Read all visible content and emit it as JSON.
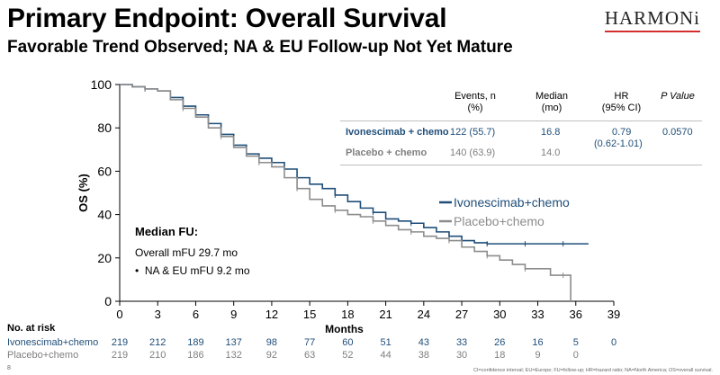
{
  "header": {
    "title": "Primary Endpoint: Overall Survival",
    "subtitle": "Favorable Trend Observed; NA & EU Follow-up Not Yet Mature",
    "logo_text": "HARMONi"
  },
  "summary_table": {
    "headers": [
      "Events, n\n(%)",
      "Median\n(mo)",
      "HR\n(95% CI)",
      "P Value"
    ],
    "rows": [
      {
        "label": "Ivonescimab + chemo",
        "events": "122 (55.7)",
        "median": "16.8",
        "hr": "0.79",
        "ci": "(0.62-1.01)",
        "p": "0.0570"
      },
      {
        "label": "Placebo + chemo",
        "events": "140 (63.9)",
        "median": "14.0",
        "hr": "",
        "ci": "",
        "p": ""
      }
    ]
  },
  "mfu": {
    "title": "Median FU:",
    "overall": "Overall mFU 29.7 mo",
    "na_eu": "NA & EU mFU 9.2 mo"
  },
  "risk_table": {
    "title": "No. at risk",
    "rows": [
      {
        "label": "Ivonescimab+chemo",
        "values": [
          "219",
          "212",
          "189",
          "137",
          "98",
          "77",
          "60",
          "51",
          "43",
          "33",
          "26",
          "16",
          "5",
          "0"
        ]
      },
      {
        "label": "Placebo+chemo",
        "values": [
          "219",
          "210",
          "186",
          "132",
          "92",
          "63",
          "52",
          "44",
          "38",
          "30",
          "18",
          "9",
          "0"
        ]
      }
    ]
  },
  "footnote": "CI=confidence interval; EU=Europe; FU=follow-up; HR=hazard ratio; NA=North America; OS=overall survival.",
  "page_number": "8",
  "colors": {
    "ivonescimab": "#1f4e79",
    "placebo": "#8c8c8c"
  },
  "chart_data": {
    "type": "line",
    "title": "",
    "xlabel": "Months",
    "ylabel": "OS (%)",
    "xlim": [
      0,
      39
    ],
    "ylim": [
      0,
      100
    ],
    "xticks": [
      0,
      3,
      6,
      9,
      12,
      15,
      18,
      21,
      24,
      27,
      30,
      33,
      36,
      39
    ],
    "yticks": [
      0,
      20,
      40,
      60,
      80,
      100
    ],
    "grid": false,
    "legend_position": "right-middle",
    "series": [
      {
        "name": "Ivonescimab+chemo",
        "color": "#1f4e79",
        "x": [
          0,
          1,
          2,
          3,
          4,
          5,
          6,
          7,
          8,
          9,
          10,
          11,
          12,
          13,
          14,
          15,
          16,
          17,
          18,
          19,
          20,
          21,
          22,
          23,
          24,
          25,
          26,
          27,
          28,
          29,
          30,
          31,
          32,
          33,
          34,
          35,
          36,
          37
        ],
        "y": [
          100,
          99,
          98,
          97,
          94,
          90,
          86,
          82,
          77,
          72,
          68,
          66,
          64,
          61,
          57,
          54,
          52,
          49,
          46,
          43,
          41,
          38,
          37,
          36,
          34,
          32,
          30,
          28,
          27,
          26.5,
          26.5,
          26.5,
          26.5,
          26.5,
          26.5,
          26.5,
          26.5,
          26.5
        ]
      },
      {
        "name": "Placebo+chemo",
        "color": "#8c8c8c",
        "x": [
          0,
          1,
          2,
          3,
          4,
          5,
          6,
          7,
          8,
          9,
          10,
          11,
          12,
          13,
          14,
          15,
          16,
          17,
          18,
          19,
          20,
          21,
          22,
          23,
          24,
          25,
          26,
          27,
          28,
          29,
          30,
          31,
          32,
          33,
          34,
          35,
          35.6
        ],
        "y": [
          100,
          99,
          98,
          97,
          93,
          89,
          85,
          80,
          76,
          71,
          67,
          64,
          62,
          57,
          52,
          47,
          44,
          42,
          40,
          39,
          37,
          35,
          33,
          32,
          30,
          29,
          28,
          25,
          23,
          21,
          19,
          17,
          15,
          15,
          12,
          12,
          0
        ]
      }
    ]
  }
}
